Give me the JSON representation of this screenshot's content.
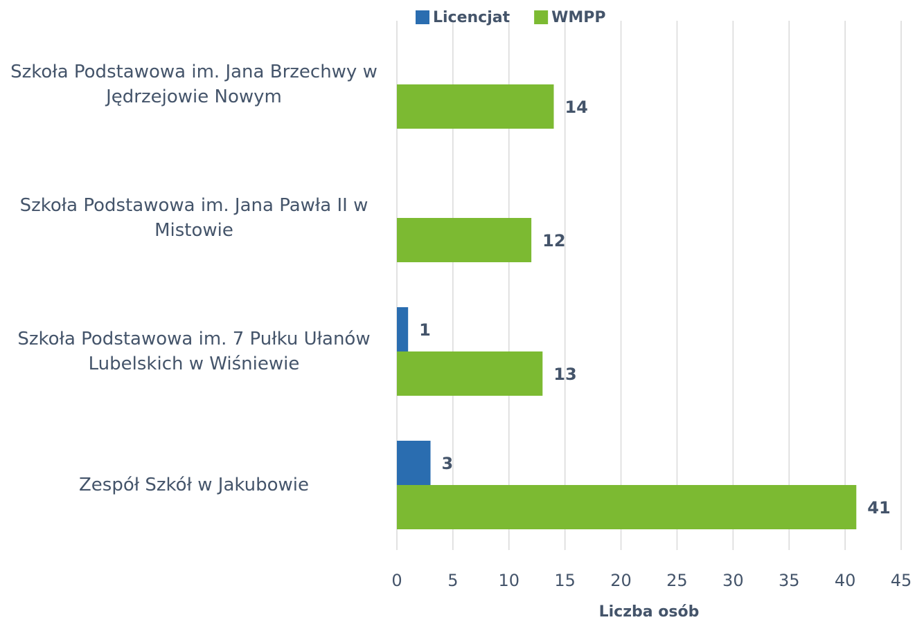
{
  "chart_data": {
    "type": "bar",
    "orientation": "horizontal",
    "categories": [
      "Szkoła Podstawowa im. Jana Brzechwy w Jędrzejowie Nowym",
      "Szkoła Podstawowa im. Jana Pawła II  w Mistowie",
      "Szkoła Podstawowa im. 7 Pułku Ułanów Lubelskich w Wiśniewie",
      "Zespół Szkół w Jakubowie"
    ],
    "series": [
      {
        "name": "Licencjat",
        "color": "#2a6db0",
        "values": [
          null,
          null,
          1,
          3
        ]
      },
      {
        "name": "WMPP",
        "color": "#7cba32",
        "values": [
          14,
          12,
          13,
          41
        ]
      }
    ],
    "xlabel": "Liczba osób",
    "xlim": [
      0,
      45
    ],
    "xticks": [
      0,
      5,
      10,
      15,
      20,
      25,
      30,
      35,
      40,
      45
    ],
    "grid": true,
    "legend": "top"
  }
}
